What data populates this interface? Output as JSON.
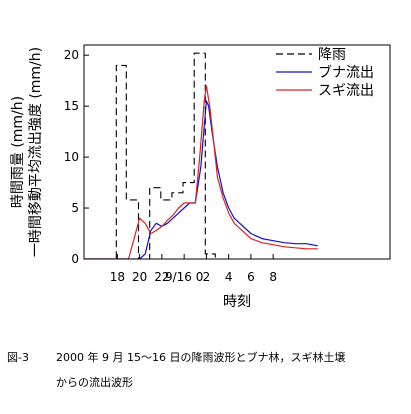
{
  "caption": {
    "figure_label": "図-3",
    "line1": "2000 年 9 月 15～16 日の降雨波形とブナ林，スギ林土壌",
    "line2": "からの流出波形"
  },
  "chart_data": {
    "type": "line",
    "xlabel": "時刻",
    "ylabel_lines": [
      "時間雨量 (mm/h)",
      "一時間移動平均流出強度 (mm/h)"
    ],
    "x_unit": "hours from 2000-09-15 15:00",
    "xlim": [
      0,
      27.5
    ],
    "ylim": [
      0,
      21
    ],
    "y_ticks": [
      0,
      5,
      10,
      15,
      20
    ],
    "x_ticks": [
      {
        "x": 3,
        "label": "18"
      },
      {
        "x": 5,
        "label": "20"
      },
      {
        "x": 7,
        "label": "22"
      },
      {
        "x": 9,
        "label": "9/16 0"
      },
      {
        "x": 11,
        "label": "2"
      },
      {
        "x": 13,
        "label": "4"
      },
      {
        "x": 15,
        "label": "6"
      },
      {
        "x": 17,
        "label": "8"
      }
    ],
    "series": [
      {
        "name": "降雨",
        "color": "#000000",
        "style": "dashed-step",
        "x": [
          0,
          2.9,
          2.9,
          3.8,
          3.8,
          4.9,
          4.9,
          5.9,
          5.9,
          6.9,
          6.9,
          7.9,
          7.9,
          8.9,
          8.9,
          9.9,
          9.9,
          10.9,
          10.9,
          11.8,
          11.8
        ],
        "y": [
          0,
          0,
          19,
          19,
          5.8,
          5.8,
          0,
          0,
          7,
          7,
          5.8,
          5.8,
          6.5,
          6.5,
          7.5,
          7.5,
          20.2,
          20.2,
          0.5,
          0.5,
          0
        ]
      },
      {
        "name": "ブナ流出",
        "color": "#1010d0",
        "style": "solid",
        "x": [
          0,
          4,
          5,
          5.5,
          6,
          6.5,
          7,
          7.5,
          8,
          8.5,
          9,
          9.5,
          10,
          10.5,
          10.8,
          11,
          11.2,
          11.5,
          12,
          12.5,
          13,
          13.5,
          14,
          15,
          16,
          17,
          18,
          19,
          20,
          21
        ],
        "y": [
          0,
          0,
          0,
          0.5,
          2.8,
          3.5,
          3.2,
          3.5,
          4,
          4.5,
          5,
          5.5,
          5.5,
          9,
          13,
          15.5,
          15,
          12.5,
          9,
          6.5,
          5,
          4,
          3.5,
          2.5,
          2,
          1.8,
          1.6,
          1.5,
          1.5,
          1.3
        ]
      },
      {
        "name": "スギ流出",
        "color": "#e02020",
        "style": "solid",
        "x": [
          0,
          4,
          4.5,
          5,
          5.5,
          6,
          6.5,
          7,
          7.5,
          8,
          8.5,
          9,
          9.5,
          10,
          10.4,
          10.8,
          11,
          11.3,
          11.6,
          12,
          12.5,
          13,
          13.5,
          14,
          15,
          16,
          17,
          18,
          19,
          20,
          21
        ],
        "y": [
          0,
          0,
          2,
          4,
          3.5,
          2.5,
          2.8,
          3.2,
          3.8,
          4.3,
          5,
          5.5,
          5.5,
          5.5,
          10,
          15.5,
          17,
          15,
          12,
          8,
          6,
          4.5,
          3.5,
          3,
          2,
          1.6,
          1.4,
          1.2,
          1.1,
          1,
          1
        ]
      }
    ],
    "legend": {
      "position": "top-right"
    },
    "grid": false
  }
}
